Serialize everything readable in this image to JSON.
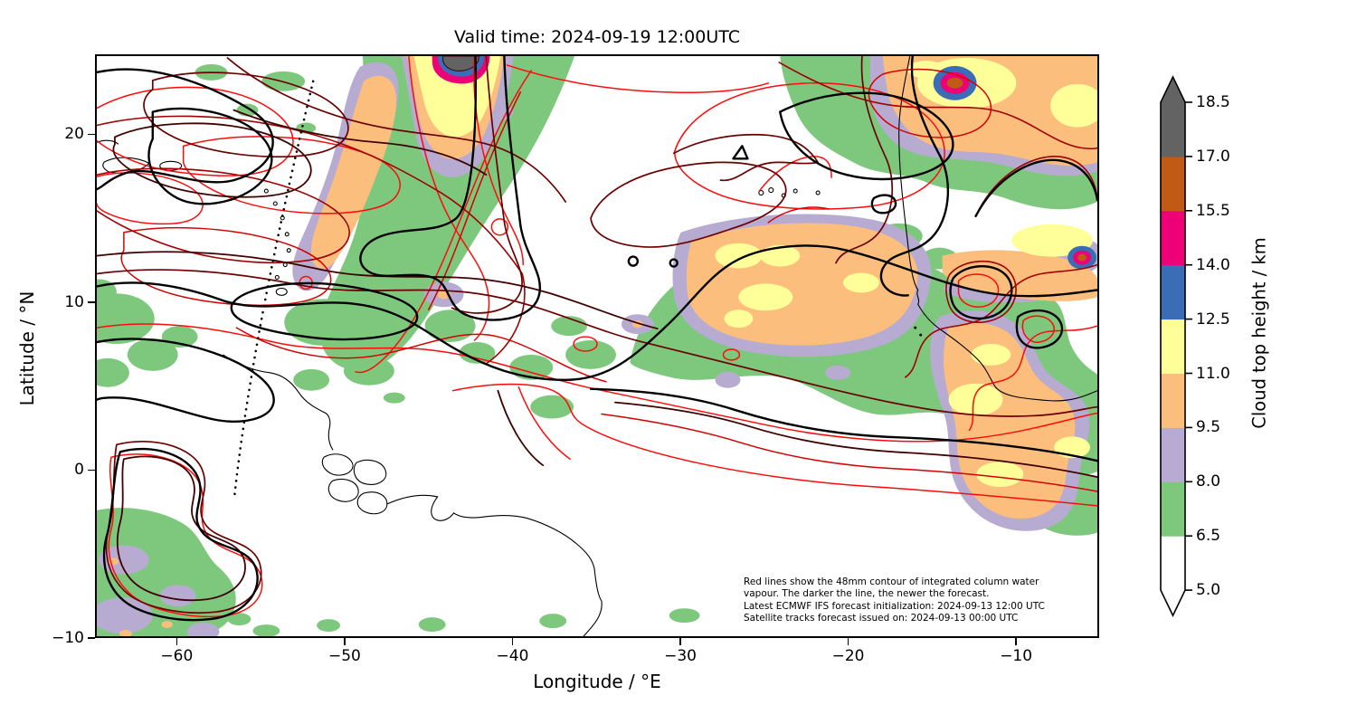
{
  "figure": {
    "title": "Valid time: 2024-09-19 12:00UTC",
    "background": "#ffffff"
  },
  "axes": {
    "xlabel": "Longitude / °E",
    "ylabel": "Latitude / °N",
    "x_ticks": [
      -60,
      -50,
      -40,
      -30,
      -20,
      -10
    ],
    "x_tick_labels": [
      "−60",
      "−50",
      "−40",
      "−30",
      "−20",
      "−10"
    ],
    "x_range": [
      -64.87,
      -5.05
    ],
    "y_ticks": [
      -10,
      0,
      10,
      20
    ],
    "y_tick_labels": [
      "−10",
      "0",
      "10",
      "20"
    ],
    "y_range": [
      -10,
      24.77
    ]
  },
  "colorbar": {
    "label": "Cloud top height / km",
    "levels": [
      5.0,
      6.5,
      8.0,
      9.5,
      11.0,
      12.5,
      14.0,
      15.5,
      17.0,
      18.5
    ],
    "tick_labels": [
      "5.0",
      "6.5",
      "8.0",
      "9.5",
      "11.0",
      "12.5",
      "14.0",
      "15.5",
      "17.0",
      "18.5"
    ],
    "colors": [
      "#ffffff",
      "#7ec87e",
      "#b7abd2",
      "#fcbe7c",
      "#ffff99",
      "#3a6db5",
      "#ee0077",
      "#c05a15",
      "#636363"
    ],
    "extend": "both"
  },
  "annotation": {
    "text": "Red lines show the 48mm contour of integrated column water\nvapour. The darker the line, the newer the forecast.\nLatest ECMWF IFS forecast initialization: 2024-09-13 12:00 UTC\nSatellite tracks forecast issued on: 2024-09-13 00:00 UTC"
  },
  "contours": {
    "red_shades_old_to_new": [
      "#ff0a0a",
      "#d40000",
      "#a00000",
      "#6b0000",
      "#400000"
    ],
    "newest_color": "#000000",
    "coastline_color": "#000000",
    "satellite_track_style": "black dotted"
  },
  "chart_data": {
    "type": "filled_contour_map",
    "projection": "longitude-latitude (Plate Carrée)",
    "title": "Valid time: 2024-09-19 12:00UTC",
    "x": {
      "label": "Longitude / °E",
      "range": [
        -64.9,
        -5.0
      ],
      "ticks": [
        -60,
        -50,
        -40,
        -30,
        -20,
        -10
      ]
    },
    "y": {
      "label": "Latitude / °N",
      "range": [
        -10,
        24.8
      ],
      "ticks": [
        -10,
        0,
        10,
        20
      ]
    },
    "fill_variable": "Cloud top height / km",
    "fill_levels": [
      5.0,
      6.5,
      8.0,
      9.5,
      11.0,
      12.5,
      14.0,
      15.5,
      17.0,
      18.5
    ],
    "fill_colors": [
      "#ffffff",
      "#7ec87e",
      "#b7abd2",
      "#fcbe7c",
      "#ffff99",
      "#3a6db5",
      "#ee0077",
      "#c05a15",
      "#636363"
    ],
    "overlays": [
      {
        "name": "integrated-column-water-vapour-48mm-contours",
        "style": "red family of lines; darker shade = newer ECMWF IFS forecast, black = newest"
      },
      {
        "name": "coastlines",
        "style": "thin black (South America, West Africa, Caribbean islands, Cape Verde)"
      },
      {
        "name": "satellite-track",
        "style": "black dotted line descending from ~24°N,56°W to ~-2°N,57°W"
      }
    ],
    "notable_features": [
      "Deep convective cell with 17-18.5 km tops (grey/blue/magenta core) at ~24°N 41-42°W",
      "Convective cell with 12.5-17 km tops at ~23°N 13°W and another at ~13°N 5-6°W",
      "Broad 9.5-12.5 km cloud shield (orange/yellow) over the ITCZ near 10-14°N, 20-30°W and off West Africa",
      "Diagonal 6.5-12.5 km cloud band from ~24°N 46°W to ~12°N 52°W",
      "Cloud cluster with 6.5-9.5 km tops near the mouth of the Amazon (~-5 to -10°N, 58-64°W)"
    ]
  }
}
